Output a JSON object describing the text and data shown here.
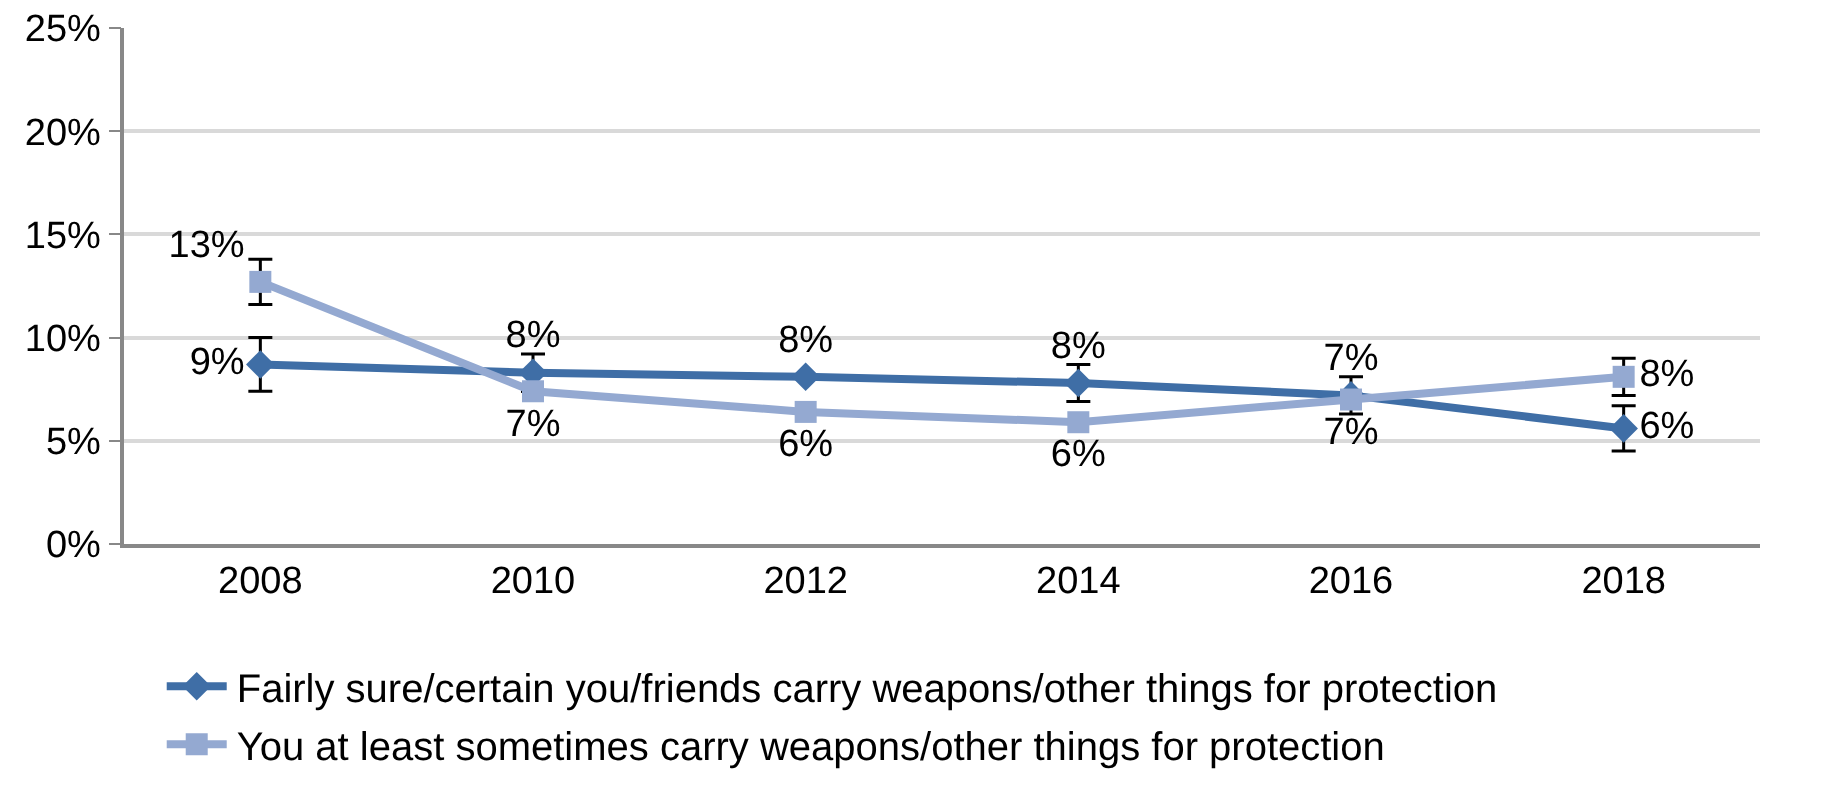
{
  "chart_data": {
    "type": "line",
    "categories": [
      "2008",
      "2010",
      "2012",
      "2014",
      "2016",
      "2018"
    ],
    "series": [
      {
        "name": "Fairly sure/certain you/friends carry weapons/other things for protection",
        "color": "#3f6ea6",
        "marker": "diamond",
        "values": [
          8.7,
          8.3,
          8.1,
          7.8,
          7.2,
          5.6
        ],
        "value_labels": [
          "9%",
          "8%",
          "8%",
          "8%",
          "7%",
          "6%"
        ],
        "errors": [
          1.3,
          0.9,
          null,
          0.9,
          0.9,
          1.1
        ]
      },
      {
        "name": "You at least sometimes carry weapons/other things for protection",
        "color": "#94a9d1",
        "marker": "square",
        "values": [
          12.7,
          7.4,
          6.4,
          5.9,
          7.0,
          8.1
        ],
        "value_labels": [
          "13%",
          "7%",
          "6%",
          "6%",
          "7%",
          "8%"
        ],
        "errors": [
          1.1,
          null,
          null,
          null,
          null,
          0.9
        ]
      }
    ],
    "ylim": [
      0,
      25
    ],
    "yticks": [
      {
        "value": 0,
        "label": "0%"
      },
      {
        "value": 5,
        "label": "5%"
      },
      {
        "value": 10,
        "label": "10%"
      },
      {
        "value": 15,
        "label": "15%"
      },
      {
        "value": 20,
        "label": "20%"
      },
      {
        "value": 25,
        "label": "25%"
      }
    ],
    "grid": "y",
    "legend": "bottom",
    "line_style": "solid"
  }
}
